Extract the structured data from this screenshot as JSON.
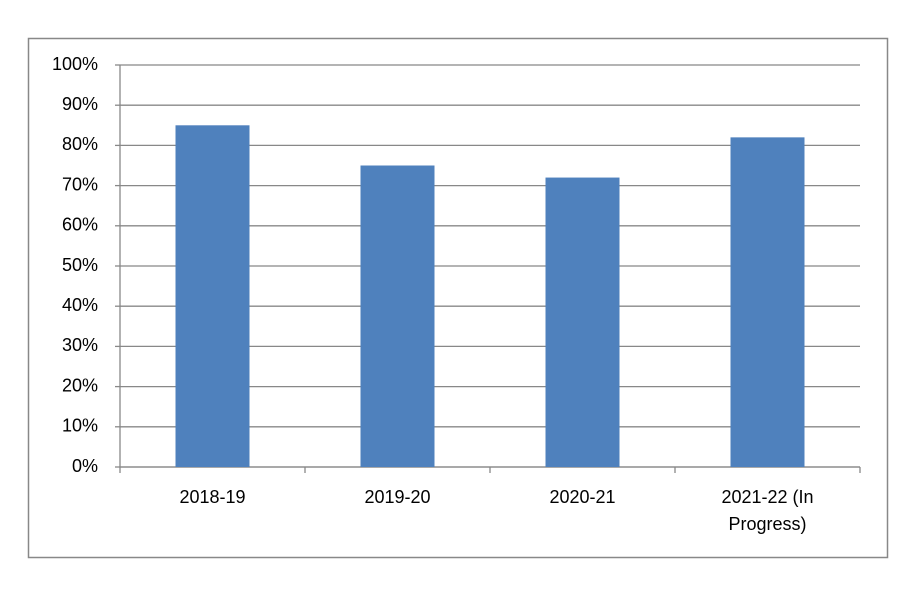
{
  "chart_data": {
    "type": "bar",
    "categories": [
      "2018-19",
      "2019-20",
      "2020-21",
      "2021-22 (In Progress)"
    ],
    "values": [
      85,
      75,
      72,
      82
    ],
    "color": "#4f81bd",
    "ylim": [
      0,
      100
    ],
    "yticks": [
      {
        "value": 0,
        "label": "0%"
      },
      {
        "value": 10,
        "label": "10%"
      },
      {
        "value": 20,
        "label": "20%"
      },
      {
        "value": 30,
        "label": "30%"
      },
      {
        "value": 40,
        "label": "40%"
      },
      {
        "value": 50,
        "label": "50%"
      },
      {
        "value": 60,
        "label": "60%"
      },
      {
        "value": 70,
        "label": "70%"
      },
      {
        "value": 80,
        "label": "80%"
      },
      {
        "value": 90,
        "label": "90%"
      },
      {
        "value": 100,
        "label": "100%"
      }
    ],
    "grid": true
  }
}
